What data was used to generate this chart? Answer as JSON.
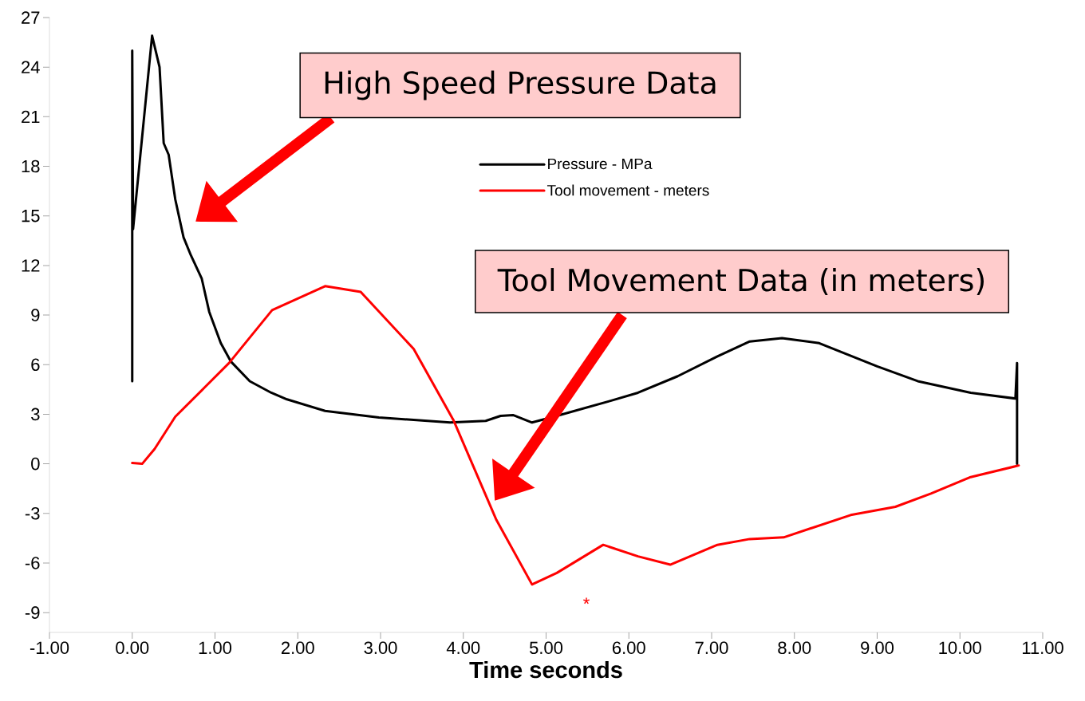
{
  "chart_data": {
    "type": "line",
    "xlabel": "Time seconds",
    "xlim": [
      -1,
      11
    ],
    "ylim": [
      -10.2,
      27
    ],
    "xticks": [
      {
        "value": -1,
        "label": "-1.00"
      },
      {
        "value": 0,
        "label": "0.00"
      },
      {
        "value": 1,
        "label": "1.00"
      },
      {
        "value": 2,
        "label": "2.00"
      },
      {
        "value": 3,
        "label": "3.00"
      },
      {
        "value": 4,
        "label": "4.00"
      },
      {
        "value": 5,
        "label": "5.00"
      },
      {
        "value": 6,
        "label": "6.00"
      },
      {
        "value": 7,
        "label": "7.00"
      },
      {
        "value": 8,
        "label": "8.00"
      },
      {
        "value": 9,
        "label": "9.00"
      },
      {
        "value": 10,
        "label": "10.00"
      },
      {
        "value": 11,
        "label": "11.00"
      }
    ],
    "yticks": [
      -9,
      -6,
      -3,
      0,
      3,
      6,
      9,
      12,
      15,
      18,
      21,
      24,
      27
    ],
    "grid": false,
    "legend": "top right",
    "marker": "none",
    "line_style": "solid",
    "series": [
      {
        "name": "Pressure - MPa",
        "color": "#000000",
        "x": [
          0,
          0,
          0.01,
          0.24,
          0.33,
          0.38,
          0.44,
          0.52,
          0.62,
          0.71,
          0.84,
          0.93,
          1.07,
          1.19,
          1.42,
          1.68,
          1.87,
          2.33,
          2.98,
          3.84,
          4.27,
          4.45,
          4.6,
          4.83,
          5.13,
          5.77,
          6.11,
          6.59,
          7.07,
          7.46,
          7.85,
          8.3,
          9.0,
          9.49,
          10.13,
          10.67,
          10.69,
          10.69
        ],
        "values": [
          5.0,
          25.0,
          14.2,
          25.9,
          24.0,
          19.4,
          18.7,
          16.0,
          13.7,
          12.6,
          11.2,
          9.2,
          7.3,
          6.2,
          5.0,
          4.3,
          3.9,
          3.2,
          2.8,
          2.5,
          2.6,
          2.9,
          2.95,
          2.5,
          2.9,
          3.8,
          4.3,
          5.3,
          6.5,
          7.4,
          7.6,
          7.3,
          5.9,
          5.0,
          4.3,
          3.95,
          6.1,
          0.0
        ]
      },
      {
        "name": "Tool movement - meters",
        "color": "#ff0000",
        "x": [
          0,
          0.12,
          0.27,
          0.52,
          0.87,
          1.17,
          1.69,
          2.33,
          2.76,
          3.4,
          3.88,
          4.4,
          4.83,
          5.13,
          5.69,
          6.11,
          6.5,
          7.07,
          7.46,
          7.87,
          8.68,
          9.22,
          9.65,
          10.13,
          10.71
        ],
        "values": [
          0.05,
          0.0,
          0.9,
          2.85,
          4.6,
          6.1,
          9.3,
          10.75,
          10.4,
          6.95,
          2.65,
          -3.4,
          -7.3,
          -6.6,
          -4.9,
          -5.6,
          -6.1,
          -4.9,
          -4.55,
          -4.45,
          -3.1,
          -2.6,
          -1.8,
          -0.8,
          -0.1
        ]
      }
    ],
    "annotations": [
      "High Speed Pressure Data",
      "Tool Movement Data (in meters)",
      "*"
    ]
  }
}
